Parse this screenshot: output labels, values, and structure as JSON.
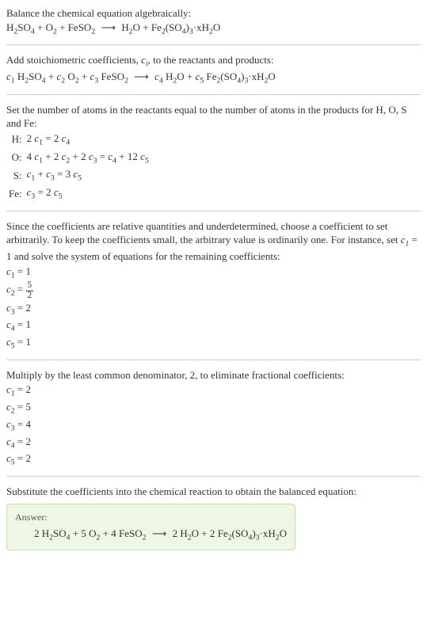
{
  "intro": {
    "line1": "Balance the chemical equation algebraically:",
    "reactants": [
      {
        "formula": "H",
        "sub": "2",
        "tail": "SO",
        "sub2": "4"
      },
      {
        "formula": "O",
        "sub": "2"
      },
      {
        "formula": "FeSO",
        "sub": "2"
      }
    ],
    "arrow": "⟶",
    "products": [
      {
        "formula": "H",
        "sub": "2",
        "tail": "O"
      },
      {
        "formula": "Fe",
        "sub": "2",
        "tail": "(SO",
        "sub2": "4",
        "tail2": ")",
        "sub3": "3",
        "tail3": "·xH",
        "sub4": "2",
        "tail4": "O"
      }
    ]
  },
  "step_coeffs": {
    "text_a": "Add stoichiometric coefficients, ",
    "ci": "c",
    "ci_sub": "i",
    "text_b": ", to the reactants and products:",
    "c_labels": [
      "c",
      "c",
      "c",
      "c",
      "c"
    ],
    "c_subs": [
      "1",
      "2",
      "3",
      "4",
      "5"
    ]
  },
  "atoms": {
    "intro_a": "Set the number of atoms in the reactants equal to the number of atoms in the products for H, O, S and Fe:",
    "rows": [
      {
        "el": "H:",
        "eq_left": "2 c",
        "s1": "1",
        "eq_mid": " = 2 c",
        "s2": "4"
      },
      {
        "el": "O:",
        "eq_left": "4 c",
        "s1": "1",
        "eq_mid": " + 2 c",
        "s2": "2",
        "eq_mid2": " + 2 c",
        "s3": "3",
        "eq_mid3": " = c",
        "s4": "4",
        "eq_mid4": " + 12 c",
        "s5": "5"
      },
      {
        "el": "S:",
        "eq_left": "c",
        "s1": "1",
        "eq_mid": " + c",
        "s2": "3",
        "eq_mid2": " = 3 c",
        "s3": "5"
      },
      {
        "el": "Fe:",
        "eq_left": "c",
        "s1": "3",
        "eq_mid": " = 2 c",
        "s2": "5"
      }
    ]
  },
  "arbitrary": {
    "text_a": "Since the coefficients are relative quantities and underdetermined, choose a coefficient to set arbitrarily. To keep the coefficients small, the arbitrary value is ordinarily one. For instance, set ",
    "c1": "c",
    "c1_sub": "1",
    "text_b": " = 1 and solve the system of equations for the remaining coefficients:",
    "values": [
      {
        "c": "c",
        "s": "1",
        "eq": " = 1"
      },
      {
        "c": "c",
        "s": "2",
        "eq_prefix": " = ",
        "frac_num": "5",
        "frac_den": "2"
      },
      {
        "c": "c",
        "s": "3",
        "eq": " = 2"
      },
      {
        "c": "c",
        "s": "4",
        "eq": " = 1"
      },
      {
        "c": "c",
        "s": "5",
        "eq": " = 1"
      }
    ]
  },
  "multiply": {
    "text": "Multiply by the least common denominator, 2, to eliminate fractional coefficients:",
    "values": [
      {
        "c": "c",
        "s": "1",
        "eq": " = 2"
      },
      {
        "c": "c",
        "s": "2",
        "eq": " = 5"
      },
      {
        "c": "c",
        "s": "3",
        "eq": " = 4"
      },
      {
        "c": "c",
        "s": "4",
        "eq": " = 2"
      },
      {
        "c": "c",
        "s": "5",
        "eq": " = 2"
      }
    ]
  },
  "final": {
    "text": "Substitute the coefficients into the chemical reaction to obtain the balanced equation:",
    "answer_label": "Answer:",
    "coeffs": [
      "2",
      "5",
      "4",
      "2",
      "2"
    ]
  },
  "colors": {
    "answer_bg": "#edf7e3",
    "answer_border": "#c5e1a5",
    "hr": "#cccccc",
    "text": "#333333"
  }
}
